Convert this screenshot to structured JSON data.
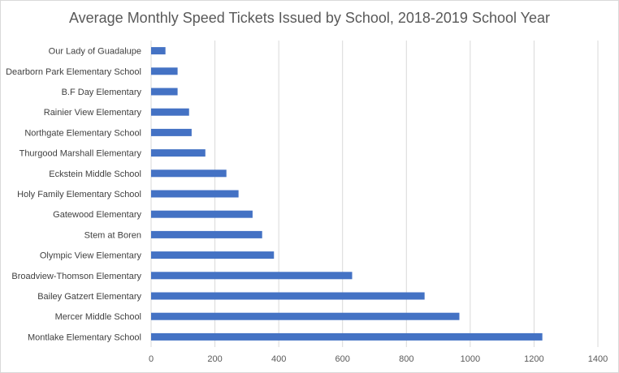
{
  "chart_data": {
    "type": "bar",
    "orientation": "horizontal",
    "title": "Average Monthly Speed Tickets Issued by School, 2018-2019 School Year",
    "categories": [
      "Our Lady of Guadalupe",
      "Dearborn Park Elementary School",
      "B.F Day Elementary",
      "Rainier View Elementary",
      "Northgate Elementary School",
      "Thurgood Marshall Elementary",
      "Eckstein Middle School",
      "Holy Family Elementary School",
      "Gatewood Elementary",
      "Stem at Boren",
      "Olympic View Elementary",
      "Broadview-Thomson Elementary",
      "Bailey Gatzert Elementary",
      "Mercer Middle School",
      "Montlake Elementary School"
    ],
    "values": [
      45,
      83,
      83,
      119,
      127,
      170,
      236,
      274,
      318,
      348,
      385,
      630,
      857,
      966,
      1226
    ],
    "xlim": [
      0,
      1400
    ],
    "xticks": [
      "0",
      "200",
      "400",
      "600",
      "800",
      "1000",
      "1200",
      "1400"
    ],
    "grid": true,
    "legend": "none",
    "bar_color": "#4472C4"
  }
}
